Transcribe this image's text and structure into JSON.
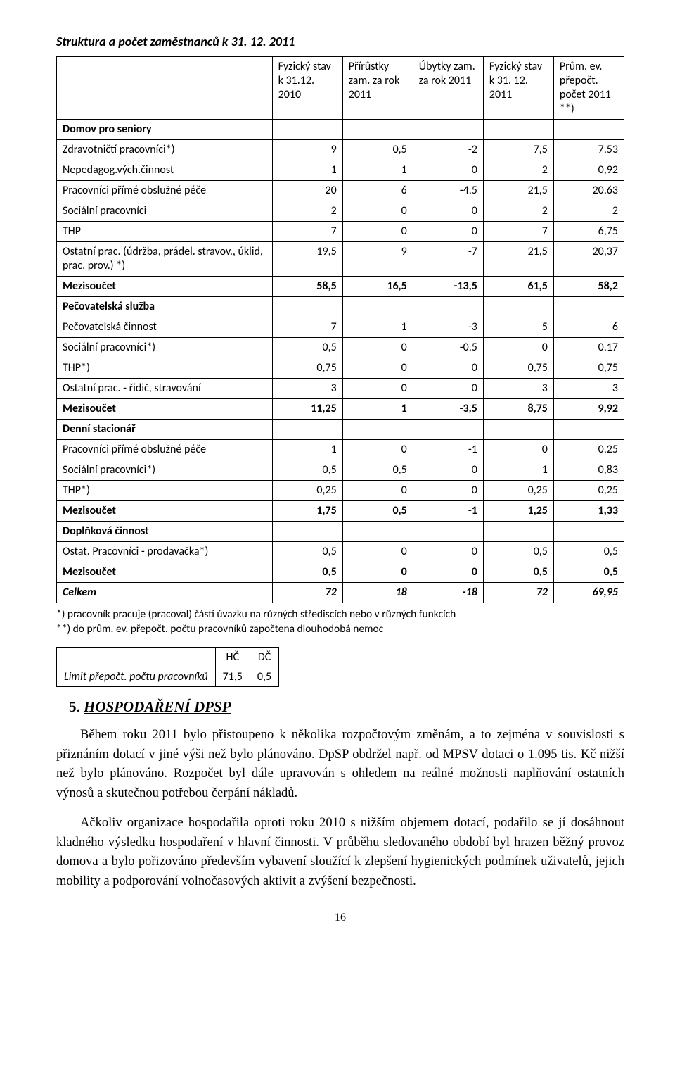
{
  "title": "Struktura a počet zaměstnanců k 31. 12. 2011",
  "table": {
    "headers": [
      "",
      "Fyzický stav k 31.12. 2010",
      "Přírůstky zam. za rok 2011",
      "Úbytky zam. za rok 2011",
      "Fyzický stav k 31. 12. 2011",
      "Prům. ev. přepočt. počet 2011 **)"
    ],
    "sections": [
      {
        "heading": "Domov pro seniory",
        "rows": [
          {
            "label": "Zdravotničtí pracovníci*)",
            "v": [
              "9",
              "0,5",
              "-2",
              "7,5",
              "7,53"
            ]
          },
          {
            "label": "Nepedagog.vých.činnost",
            "v": [
              "1",
              "1",
              "0",
              "2",
              "0,92"
            ]
          },
          {
            "label": "Pracovníci přímé obslužné péče",
            "v": [
              "20",
              "6",
              "-4,5",
              "21,5",
              "20,63"
            ]
          },
          {
            "label": "Sociální pracovníci",
            "v": [
              "2",
              "0",
              "0",
              "2",
              "2"
            ]
          },
          {
            "label": "THP",
            "v": [
              "7",
              "0",
              "0",
              "7",
              "6,75"
            ]
          },
          {
            "label": "Ostatní prac. (údržba, prádel. stravov., úklid, prac. prov.) *)",
            "v": [
              "19,5",
              "9",
              "-7",
              "21,5",
              "20,37"
            ]
          }
        ],
        "subtotal": {
          "label": "Mezisoučet",
          "v": [
            "58,5",
            "16,5",
            "-13,5",
            "61,5",
            "58,2"
          ]
        }
      },
      {
        "heading": "Pečovatelská služba",
        "rows": [
          {
            "label": "Pečovatelská činnost",
            "v": [
              "7",
              "1",
              "-3",
              "5",
              "6"
            ]
          },
          {
            "label": "Sociální pracovníci*)",
            "v": [
              "0,5",
              "0",
              "-0,5",
              "0",
              "0,17"
            ]
          },
          {
            "label": "THP*)",
            "v": [
              "0,75",
              "0",
              "0",
              "0,75",
              "0,75"
            ]
          },
          {
            "label": "Ostatní prac. - řidič, stravování",
            "v": [
              "3",
              "0",
              "0",
              "3",
              "3"
            ]
          }
        ],
        "subtotal": {
          "label": "Mezisoučet",
          "v": [
            "11,25",
            "1",
            "-3,5",
            "8,75",
            "9,92"
          ]
        }
      },
      {
        "heading": "Denní stacionář",
        "rows": [
          {
            "label": "Pracovníci přímé obslužné péče",
            "v": [
              "1",
              "0",
              "-1",
              "0",
              "0,25"
            ]
          },
          {
            "label": "Sociální pracovníci*)",
            "v": [
              "0,5",
              "0,5",
              "0",
              "1",
              "0,83"
            ]
          },
          {
            "label": "THP*)",
            "v": [
              "0,25",
              "0",
              "0",
              "0,25",
              "0,25"
            ]
          }
        ],
        "subtotal": {
          "label": "Mezisoučet",
          "v": [
            "1,75",
            "0,5",
            "-1",
            "1,25",
            "1,33"
          ]
        }
      },
      {
        "heading": "Doplňková činnost",
        "rows": [
          {
            "label": "Ostat. Pracovníci - prodavačka*)",
            "v": [
              "0,5",
              "0",
              "0",
              "0,5",
              "0,5"
            ]
          }
        ],
        "subtotal": {
          "label": "Mezisoučet",
          "v": [
            "0,5",
            "0",
            "0",
            "0,5",
            "0,5"
          ]
        }
      }
    ],
    "total": {
      "label": "Celkem",
      "v": [
        "72",
        "18",
        "-18",
        "72",
        "69,95"
      ]
    }
  },
  "footnotes": [
    "*) pracovník pracuje (pracoval) částí úvazku na různých střediscích nebo v různých funkcích",
    "**) do prům. ev. přepočt. počtu pracovníků započtena dlouhodobá nemoc"
  ],
  "smalltable": {
    "headers": [
      "",
      "HČ",
      "DČ"
    ],
    "row": {
      "label": "Limit přepočt. počtu pracovníků",
      "v": [
        "71,5",
        "0,5"
      ]
    }
  },
  "chapter": {
    "num": "5.",
    "title": "HOSPODAŘENÍ DPSP"
  },
  "paragraphs": [
    "Během roku 2011 bylo přistoupeno k několika rozpočtovým změnám, a to zejména v souvislosti s přiznáním dotací v jiné výši než bylo plánováno. DpSP obdržel např. od MPSV dotaci o 1.095 tis. Kč nižší než bylo plánováno. Rozpočet byl dále upravován s ohledem na reálné možnosti naplňování ostatních výnosů a skutečnou potřebou čerpání nákladů.",
    "Ačkoliv organizace hospodařila oproti roku 2010 s nižším objemem dotací, podařilo se jí dosáhnout kladného výsledku hospodaření v hlavní činnosti. V průběhu sledovaného období byl hrazen běžný provoz domova a bylo pořizováno především vybavení sloužící k zlepšení hygienických podmínek uživatelů, jejich mobility a podporování volnočasových aktivit a zvýšení bezpečnosti."
  ],
  "pagenum": "16"
}
